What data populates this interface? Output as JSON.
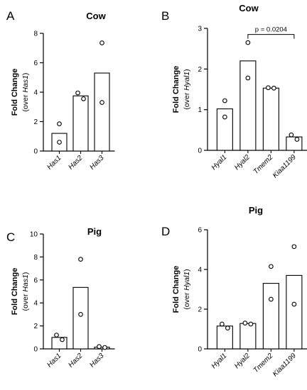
{
  "chart_data": [
    {
      "panel": "A",
      "type": "bar",
      "title": "Cow",
      "ylabel": "Fold Change",
      "ylabel_sub": {
        "prefix": "(over ",
        "gene": "Has1",
        "suffix": ")"
      },
      "categories": [
        "Has1",
        "Has2",
        "Has3"
      ],
      "values": [
        1.2,
        3.75,
        5.3
      ],
      "points": [
        [
          1.85,
          0.6
        ],
        [
          3.95,
          3.55
        ],
        [
          7.35,
          3.3
        ]
      ],
      "ylim": [
        0,
        8
      ],
      "yticks": [
        "0",
        "2",
        "4",
        "6",
        "8"
      ],
      "tick_values": [
        0,
        2,
        4,
        6,
        8
      ],
      "annotations": []
    },
    {
      "panel": "B",
      "type": "bar",
      "title": "Cow",
      "ylabel": "Fold Change",
      "ylabel_sub": {
        "prefix": "(over ",
        "gene": "Hyal1",
        "suffix": ")"
      },
      "categories": [
        "Hyal1",
        "Hyal2",
        "Tmem2",
        "Kiaa1199"
      ],
      "values": [
        1.02,
        2.2,
        1.53,
        0.33
      ],
      "points": [
        [
          1.22,
          0.82
        ],
        [
          2.65,
          1.78
        ],
        [
          1.54,
          1.53
        ],
        [
          0.38,
          0.27
        ]
      ],
      "ylim": [
        0,
        3
      ],
      "yticks": [
        "0",
        "1",
        "2",
        "3"
      ],
      "tick_values": [
        0,
        1,
        2,
        3
      ],
      "annotations": [
        {
          "text": "p = 0.0204",
          "from_category": 1,
          "to_category": 3,
          "y": 2.85
        }
      ]
    },
    {
      "panel": "C",
      "type": "bar",
      "title": "Pig",
      "ylabel": "Fold Change",
      "ylabel_sub": {
        "prefix": "(over ",
        "gene": "Has1",
        "suffix": ")"
      },
      "categories": [
        "Has1",
        "Has2",
        "Has3"
      ],
      "values": [
        1.0,
        5.35,
        0.15
      ],
      "points": [
        [
          1.2,
          0.8
        ],
        [
          7.8,
          3.0
        ],
        [
          0.2,
          0.12
        ]
      ],
      "ylim": [
        0,
        10
      ],
      "yticks": [
        "0",
        "2",
        "4",
        "6",
        "8",
        "10"
      ],
      "tick_values": [
        0,
        2,
        4,
        6,
        8,
        10
      ],
      "annotations": []
    },
    {
      "panel": "D",
      "type": "bar",
      "title": "Pig",
      "ylabel": "Fold Change",
      "ylabel_sub": {
        "prefix": "(over ",
        "gene": "Hyal1",
        "suffix": ")"
      },
      "categories": [
        "Hyal1",
        "Hyal2",
        "Tmem2",
        "Kiaa1199"
      ],
      "values": [
        1.15,
        1.28,
        3.3,
        3.7
      ],
      "points": [
        [
          1.25,
          1.05
        ],
        [
          1.3,
          1.25
        ],
        [
          4.15,
          2.5
        ],
        [
          5.15,
          2.25
        ]
      ],
      "ylim": [
        0,
        6
      ],
      "yticks": [
        "0",
        "2",
        "4",
        "6"
      ],
      "tick_values": [
        0,
        2,
        4,
        6
      ],
      "annotations": []
    }
  ]
}
